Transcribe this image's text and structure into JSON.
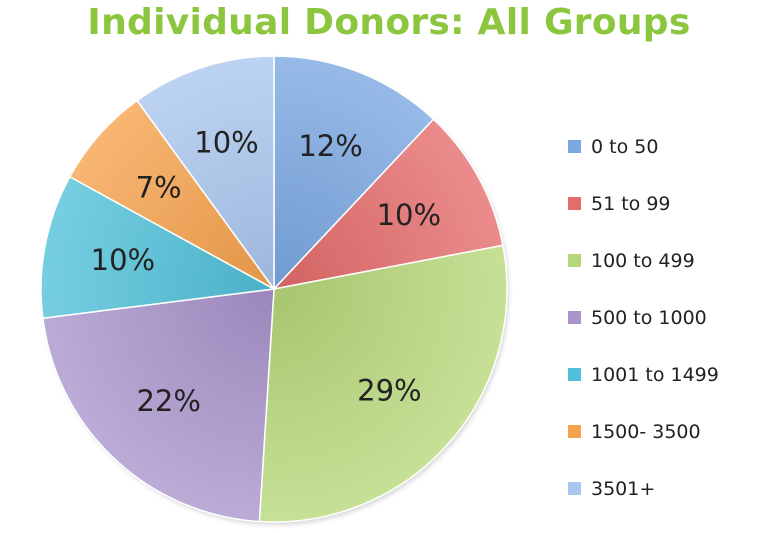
{
  "chart_data": {
    "type": "pie",
    "title": "Individual Donors: All Groups",
    "categories": [
      "0 to 50",
      "51 to 99",
      "100 to 499",
      "500 to 1000",
      "1001 to 1499",
      "1500- 3500",
      "3501+"
    ],
    "values": [
      12,
      10,
      29,
      22,
      10,
      7,
      10
    ],
    "labels": [
      "12%",
      "10%",
      "29%",
      "22%",
      "10%",
      "7%",
      "10%"
    ],
    "colors": [
      "#7aa7e2",
      "#e46c6a",
      "#b6d779",
      "#a893cb",
      "#4fc0d9",
      "#f6a24c",
      "#aac6ee"
    ],
    "legend_position": "right"
  }
}
